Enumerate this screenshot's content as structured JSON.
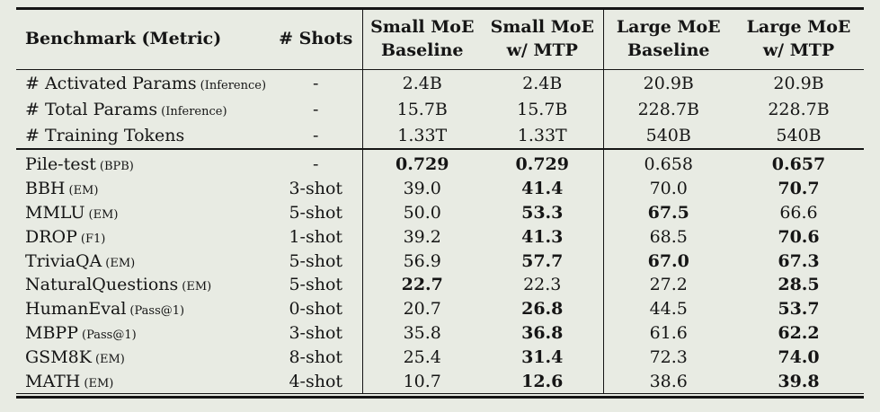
{
  "page": {
    "background_color": "#e8ebe3",
    "ink_color": "#151515"
  },
  "table": {
    "header": {
      "benchmark_label": "Benchmark (Metric)",
      "shots_label": "# Shots",
      "group_columns": [
        {
          "top": "Small MoE",
          "bottom": "Baseline"
        },
        {
          "top": "Small MoE",
          "bottom": "w/ MTP"
        },
        {
          "top": "Large MoE",
          "bottom": "Baseline"
        },
        {
          "top": "Large MoE",
          "bottom": "w/ MTP"
        }
      ]
    },
    "info_rows": [
      {
        "name": "# Activated Params",
        "metric": "(Inference)",
        "shots": "-",
        "values": [
          {
            "text": "2.4B",
            "bold": false
          },
          {
            "text": "2.4B",
            "bold": false
          },
          {
            "text": "20.9B",
            "bold": false
          },
          {
            "text": "20.9B",
            "bold": false
          }
        ]
      },
      {
        "name": "# Total Params",
        "metric": "(Inference)",
        "shots": "-",
        "values": [
          {
            "text": "15.7B",
            "bold": false
          },
          {
            "text": "15.7B",
            "bold": false
          },
          {
            "text": "228.7B",
            "bold": false
          },
          {
            "text": "228.7B",
            "bold": false
          }
        ]
      },
      {
        "name": "# Training Tokens",
        "metric": "",
        "shots": "-",
        "values": [
          {
            "text": "1.33T",
            "bold": false
          },
          {
            "text": "1.33T",
            "bold": false
          },
          {
            "text": "540B",
            "bold": false
          },
          {
            "text": "540B",
            "bold": false
          }
        ]
      }
    ],
    "benchmark_rows": [
      {
        "name": "Pile-test",
        "metric": "(BPB)",
        "shots": "-",
        "values": [
          {
            "text": "0.729",
            "bold": true
          },
          {
            "text": "0.729",
            "bold": true
          },
          {
            "text": "0.658",
            "bold": false
          },
          {
            "text": "0.657",
            "bold": true
          }
        ]
      },
      {
        "name": "BBH",
        "metric": "(EM)",
        "shots": "3-shot",
        "values": [
          {
            "text": "39.0",
            "bold": false
          },
          {
            "text": "41.4",
            "bold": true
          },
          {
            "text": "70.0",
            "bold": false
          },
          {
            "text": "70.7",
            "bold": true
          }
        ]
      },
      {
        "name": "MMLU",
        "metric": "(EM)",
        "shots": "5-shot",
        "values": [
          {
            "text": "50.0",
            "bold": false
          },
          {
            "text": "53.3",
            "bold": true
          },
          {
            "text": "67.5",
            "bold": true
          },
          {
            "text": "66.6",
            "bold": false
          }
        ]
      },
      {
        "name": "DROP",
        "metric": "(F1)",
        "shots": "1-shot",
        "values": [
          {
            "text": "39.2",
            "bold": false
          },
          {
            "text": "41.3",
            "bold": true
          },
          {
            "text": "68.5",
            "bold": false
          },
          {
            "text": "70.6",
            "bold": true
          }
        ]
      },
      {
        "name": "TriviaQA",
        "metric": "(EM)",
        "shots": "5-shot",
        "values": [
          {
            "text": "56.9",
            "bold": false
          },
          {
            "text": "57.7",
            "bold": true
          },
          {
            "text": "67.0",
            "bold": true
          },
          {
            "text": "67.3",
            "bold": true
          }
        ]
      },
      {
        "name": "NaturalQuestions",
        "metric": "(EM)",
        "shots": "5-shot",
        "values": [
          {
            "text": "22.7",
            "bold": true
          },
          {
            "text": "22.3",
            "bold": false
          },
          {
            "text": "27.2",
            "bold": false
          },
          {
            "text": "28.5",
            "bold": true
          }
        ]
      },
      {
        "name": "HumanEval",
        "metric": "(Pass@1)",
        "shots": "0-shot",
        "values": [
          {
            "text": "20.7",
            "bold": false
          },
          {
            "text": "26.8",
            "bold": true
          },
          {
            "text": "44.5",
            "bold": false
          },
          {
            "text": "53.7",
            "bold": true
          }
        ]
      },
      {
        "name": "MBPP",
        "metric": "(Pass@1)",
        "shots": "3-shot",
        "values": [
          {
            "text": "35.8",
            "bold": false
          },
          {
            "text": "36.8",
            "bold": true
          },
          {
            "text": "61.6",
            "bold": false
          },
          {
            "text": "62.2",
            "bold": true
          }
        ]
      },
      {
        "name": "GSM8K",
        "metric": "(EM)",
        "shots": "8-shot",
        "values": [
          {
            "text": "25.4",
            "bold": false
          },
          {
            "text": "31.4",
            "bold": true
          },
          {
            "text": "72.3",
            "bold": false
          },
          {
            "text": "74.0",
            "bold": true
          }
        ]
      },
      {
        "name": "MATH",
        "metric": "(EM)",
        "shots": "4-shot",
        "values": [
          {
            "text": "10.7",
            "bold": false
          },
          {
            "text": "12.6",
            "bold": true
          },
          {
            "text": "38.6",
            "bold": false
          },
          {
            "text": "39.8",
            "bold": true
          }
        ]
      }
    ]
  }
}
